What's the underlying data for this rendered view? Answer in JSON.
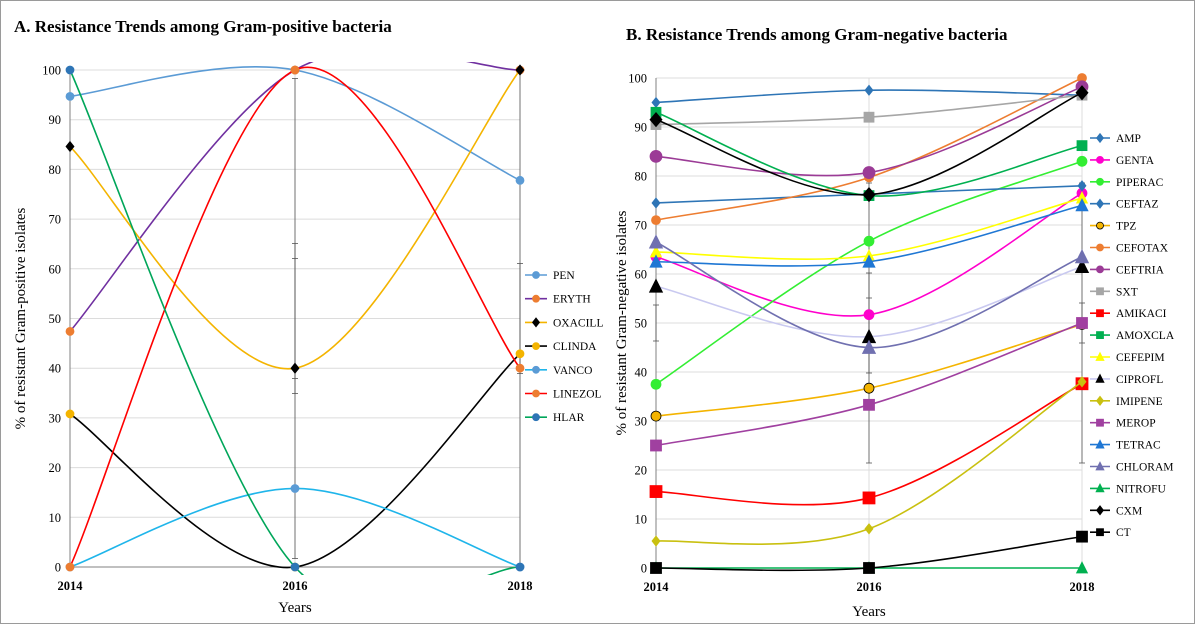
{
  "chart_data": [
    {
      "type": "line",
      "title": "A.  Resistance Trends among Gram-positive bacteria",
      "xlabel": "Years",
      "ylabel": "% of resistant Gram-positive isolates",
      "categories": [
        "2014",
        "2016",
        "2018"
      ],
      "ylim": [
        0,
        100
      ],
      "yticks": [
        0,
        10,
        20,
        30,
        40,
        50,
        60,
        70,
        80,
        90,
        100
      ],
      "grid": true,
      "smooth": true,
      "legend_position": "right",
      "series": [
        {
          "name": "PEN",
          "values": [
            94.7,
            100,
            77.8
          ],
          "color": "#5b9bd5",
          "marker": "circle"
        },
        {
          "name": "ERYTH",
          "values": [
            47.4,
            100,
            100
          ],
          "color": "#7030a0",
          "marker": "circle",
          "marker_color": "#ed7d31"
        },
        {
          "name": "OXACILL",
          "values": [
            84.6,
            40,
            100
          ],
          "color": "#f4b400",
          "marker": "diamond",
          "marker_color": "#000000"
        },
        {
          "name": "CLINDA",
          "values": [
            30.8,
            0,
            42.9
          ],
          "color": "#000000",
          "marker": "circle",
          "marker_color": "#f4b400"
        },
        {
          "name": "VANCO",
          "values": [
            0,
            15.8,
            0
          ],
          "color": "#1fb5ea",
          "marker": "circle",
          "marker_color": "#5b9bd5"
        },
        {
          "name": "LINEZOL",
          "values": [
            0,
            100,
            40
          ],
          "color": "#ff0000",
          "marker": "circle",
          "marker_color": "#ed7d31"
        },
        {
          "name": "HLAR",
          "values": [
            100,
            0,
            0
          ],
          "color": "#00a65a",
          "marker": "circle",
          "marker_color": "#2e75b6"
        }
      ]
    },
    {
      "type": "line",
      "title": "B. Resistance Trends among Gram-negative bacteria",
      "xlabel": "Years",
      "ylabel": "% of resistant Gram-negative isolates",
      "categories": [
        "2014",
        "2016",
        "2018"
      ],
      "ylim": [
        0,
        100
      ],
      "yticks": [
        0,
        10,
        20,
        30,
        40,
        50,
        60,
        70,
        80,
        90,
        100
      ],
      "grid": true,
      "smooth": true,
      "legend_position": "right",
      "series": [
        {
          "name": "AMP",
          "values": [
            95,
            97.5,
            96.5
          ],
          "color": "#2e75b6",
          "marker": "diamond",
          "size": 4
        },
        {
          "name": "GENTA",
          "values": [
            63.5,
            51.7,
            76.5
          ],
          "color": "#ff00cc",
          "marker": "circle",
          "size": 5
        },
        {
          "name": "PIPERAC",
          "values": [
            37.5,
            66.7,
            83
          ],
          "color": "#33ee33",
          "marker": "circle",
          "size": 5
        },
        {
          "name": "CEFTAZ",
          "values": [
            74.5,
            76.3,
            78
          ],
          "color": "#2e75b6",
          "marker": "diamond",
          "size": 4
        },
        {
          "name": "TPZ",
          "values": [
            31,
            36.7,
            49.7
          ],
          "color": "#f4b400",
          "marker": "circle",
          "marker_color": "#f4b400",
          "marker_stroke": "#000000",
          "size": 5
        },
        {
          "name": "CEFOTAX",
          "values": [
            71,
            79.7,
            100
          ],
          "color": "#ed7d31",
          "marker": "circle",
          "size": 4.5
        },
        {
          "name": "CEFTRIA",
          "values": [
            84,
            80.7,
            98.2
          ],
          "color": "#9b3b96",
          "marker": "circle",
          "size": 6
        },
        {
          "name": "SXT",
          "values": [
            90.5,
            92,
            96.5
          ],
          "color": "#a6a6a6",
          "marker": "square",
          "size": 5
        },
        {
          "name": "AMIKACI",
          "values": [
            15.6,
            14.3,
            37.6
          ],
          "color": "#ff0000",
          "marker": "square",
          "size": 6
        },
        {
          "name": "AMOXCLA",
          "values": [
            93,
            76,
            86.2
          ],
          "color": "#00b050",
          "marker": "square",
          "size": 5
        },
        {
          "name": "CEFEPIM",
          "values": [
            64.5,
            63.7,
            75.5
          ],
          "color": "#ffff00",
          "marker": "triangle",
          "size": 5
        },
        {
          "name": "CIPROFL",
          "values": [
            57.5,
            47.2,
            61.5
          ],
          "color": "#c9c9f0",
          "marker": "triangle",
          "marker_color": "#000000",
          "size": 6
        },
        {
          "name": "IMIPENE",
          "values": [
            5.5,
            8,
            38
          ],
          "color": "#c9c010",
          "marker": "diamond",
          "size": 4
        },
        {
          "name": "MEROP",
          "values": [
            25,
            33.3,
            50
          ],
          "color": "#a040a0",
          "marker": "square",
          "size": 5.5
        },
        {
          "name": "TETRAC",
          "values": [
            62.5,
            62.5,
            74
          ],
          "color": "#1f77d4",
          "marker": "triangle",
          "size": 5.5
        },
        {
          "name": "CHLORAM",
          "values": [
            66.5,
            45,
            63.5
          ],
          "color": "#7070b0",
          "marker": "triangle",
          "size": 6
        },
        {
          "name": "NITROFU",
          "values": [
            0,
            0,
            0
          ],
          "color": "#00b050",
          "marker": "triangle",
          "size": 5
        },
        {
          "name": "CXM",
          "values": [
            91.5,
            76.2,
            97
          ],
          "color": "#000000",
          "marker": "diamond",
          "size": 6
        },
        {
          "name": "CT",
          "values": [
            0,
            0,
            6.4
          ],
          "color": "#000000",
          "marker": "square",
          "size": 5.5
        }
      ]
    }
  ]
}
